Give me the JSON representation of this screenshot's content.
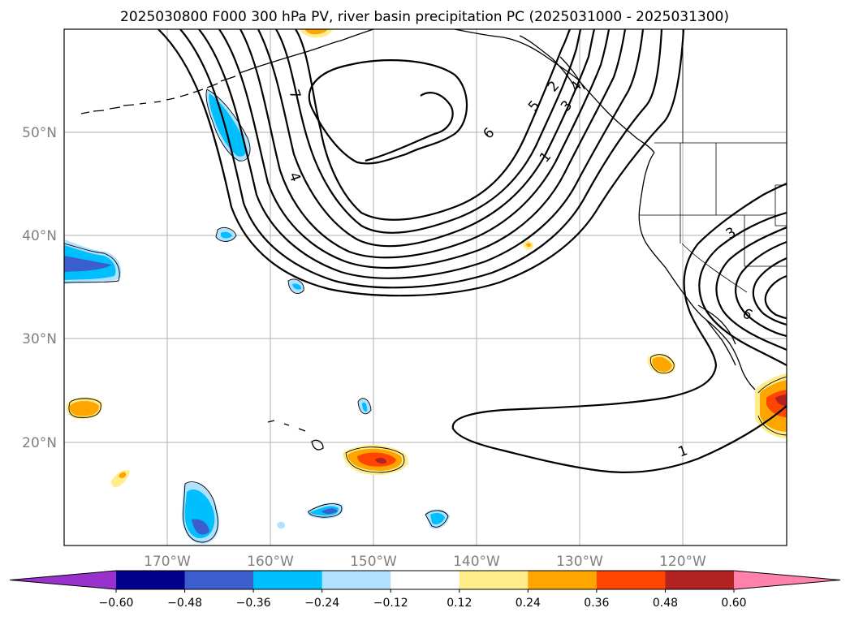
{
  "title": "2025030800 F000 300 hPa PV, river basin precipitation PC (2025031000 - 2025031300)",
  "map": {
    "lon_ticks": [
      "170°W",
      "160°W",
      "150°W",
      "140°W",
      "130°W",
      "120°W"
    ],
    "lat_ticks": [
      "50°N",
      "40°N",
      "30°N",
      "20°N"
    ],
    "gridlines": true,
    "contour_labels": [
      "1",
      "1",
      "2",
      "3",
      "4",
      "5",
      "6",
      "7",
      "6",
      "3",
      "4"
    ]
  },
  "colorbar": {
    "ticks": [
      "−0.60",
      "−0.48",
      "−0.36",
      "−0.24",
      "−0.12",
      "0.12",
      "0.24",
      "0.36",
      "0.48",
      "0.60"
    ],
    "colors": [
      "#9932cc",
      "#00008b",
      "#3a5fcd",
      "#00bfff",
      "#b0e2ff",
      "#ffffff",
      "#ffec8b",
      "#ffa500",
      "#ff4500",
      "#b22222",
      "#ff82ab"
    ],
    "extend": "both"
  }
}
